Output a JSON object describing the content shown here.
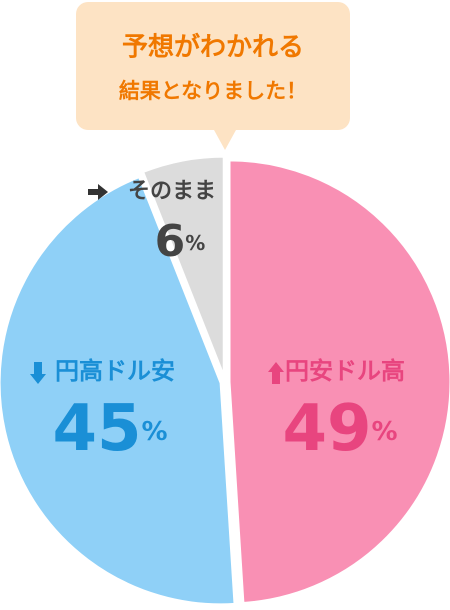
{
  "chart_data": {
    "type": "pie",
    "title": [
      "予想がわかれる",
      "結果となりました！"
    ],
    "categories": [
      "円安ドル高",
      "円高ドル安",
      "そのまま"
    ],
    "values": [
      49,
      45,
      6
    ],
    "value_labels": [
      "49%",
      "45%",
      "6%"
    ],
    "colors": [
      "#f990b4",
      "#8fd0f7",
      "#dcdcdc"
    ],
    "label_colors": [
      "#e8457f",
      "#1a8fd6",
      "#444444"
    ]
  }
}
